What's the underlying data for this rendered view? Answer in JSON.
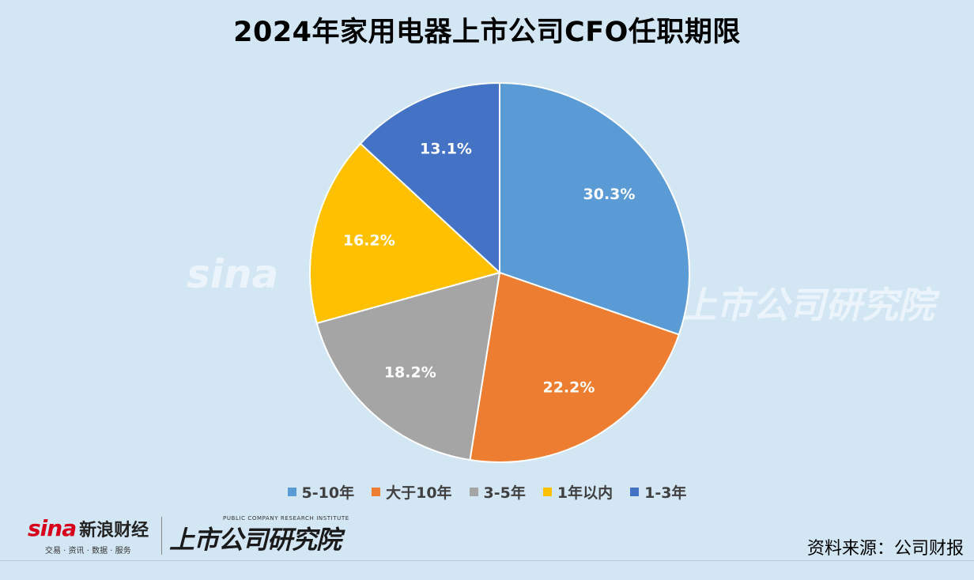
{
  "chart_data": {
    "type": "pie",
    "title": "2024年家用电器上市公司CFO任职期限",
    "slices": [
      {
        "label": "5-10年",
        "value": 30.3,
        "display": "30.3%",
        "color": "#5b9bd5"
      },
      {
        "label": "大于10年",
        "value": 22.2,
        "display": "22.2%",
        "color": "#ed7d31"
      },
      {
        "label": "3-5年",
        "value": 18.2,
        "display": "18.2%",
        "color": "#a5a5a5"
      },
      {
        "label": "1年以内",
        "value": 16.2,
        "display": "16.2%",
        "color": "#ffc000"
      },
      {
        "label": "1-3年",
        "value": 13.1,
        "display": "13.1%",
        "color": "#4472c4"
      }
    ],
    "legend_placement": "bottom",
    "start_angle": "12 o'clock, clockwise"
  },
  "watermark": {
    "brand": "sina",
    "brand_cn": "新浪财经",
    "brand_sub": "交易 · 资讯 · 数据 · 服务",
    "institute_en": "PUBLIC COMPANY RESEARCH INSTITUTE",
    "institute_cn": "上市公司研究院"
  },
  "source": "资料来源：公司财报"
}
